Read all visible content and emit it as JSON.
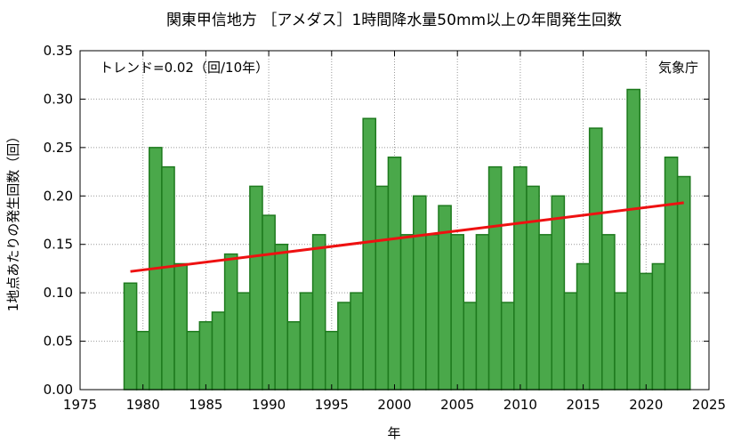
{
  "chart_data": {
    "type": "bar",
    "title": "関東甲信地方 ［アメダス］1時間降水量50mm以上の年間発生回数",
    "xlabel": "年",
    "ylabel": "1地点あたりの発生回数（回）",
    "trend_text": "トレンド=0.02（回/10年）",
    "source": "気象庁",
    "xlim": [
      1975,
      2025
    ],
    "ylim": [
      0,
      0.35
    ],
    "x_ticks": [
      1975,
      1980,
      1985,
      1990,
      1995,
      2000,
      2005,
      2010,
      2015,
      2020,
      2025
    ],
    "y_ticks": [
      "0.00",
      "0.05",
      "0.10",
      "0.15",
      "0.20",
      "0.25",
      "0.30",
      "0.35"
    ],
    "grid": true,
    "x": [
      1979,
      1980,
      1981,
      1982,
      1983,
      1984,
      1985,
      1986,
      1987,
      1988,
      1989,
      1990,
      1991,
      1992,
      1993,
      1994,
      1995,
      1996,
      1997,
      1998,
      1999,
      2000,
      2001,
      2002,
      2003,
      2004,
      2005,
      2006,
      2007,
      2008,
      2009,
      2010,
      2011,
      2012,
      2013,
      2014,
      2015,
      2016,
      2017,
      2018,
      2019,
      2020,
      2021,
      2022,
      2023
    ],
    "values": [
      0.11,
      0.06,
      0.25,
      0.23,
      0.13,
      0.06,
      0.07,
      0.08,
      0.14,
      0.1,
      0.21,
      0.18,
      0.15,
      0.07,
      0.1,
      0.16,
      0.06,
      0.09,
      0.1,
      0.28,
      0.21,
      0.24,
      0.16,
      0.2,
      0.16,
      0.19,
      0.16,
      0.09,
      0.16,
      0.23,
      0.09,
      0.23,
      0.21,
      0.16,
      0.2,
      0.1,
      0.13,
      0.27,
      0.16,
      0.1,
      0.31,
      0.12,
      0.13,
      0.24,
      0.22
    ],
    "trend": {
      "x": [
        1979,
        2023
      ],
      "y": [
        0.122,
        0.193
      ]
    },
    "colors": {
      "bar_fill": "#4aa84a",
      "bar_stroke": "#1e7a1e",
      "trend": "#ee1111"
    }
  }
}
